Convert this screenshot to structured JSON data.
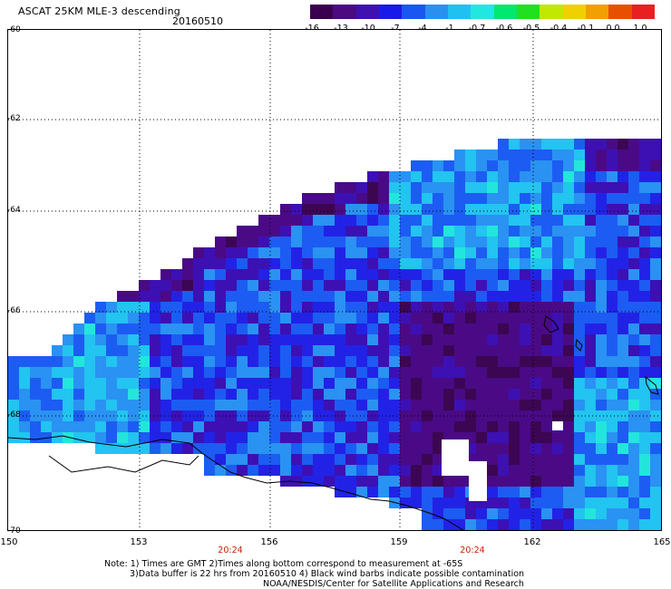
{
  "title": "ASCAT 25KM MLE-3 descending",
  "date": "20160510",
  "colorbar": {
    "colors": [
      "#3a0050",
      "#4a0a80",
      "#4010b0",
      "#1a1ae8",
      "#1a56f0",
      "#2a90f0",
      "#20c0f0",
      "#20e8e0",
      "#00e870",
      "#20e020",
      "#c0e800",
      "#f0d000",
      "#f0a000",
      "#e85000",
      "#e82020"
    ],
    "ticks": [
      "-16",
      "-13",
      "-10",
      "-7",
      "-4",
      "-1",
      "-0.7",
      "-0.6",
      "-0.5",
      "-0.4",
      "-0.1",
      "0.0",
      "1.0"
    ]
  },
  "lat_labels": [
    "-60",
    "-62",
    "-64",
    "-66",
    "-68",
    "-70"
  ],
  "lon_labels": [
    "150",
    "153",
    "156",
    "159",
    "162",
    "165"
  ],
  "time_labels": [
    "20:24",
    "20:24"
  ],
  "notes": {
    "line1": "Note: 1) Times are GMT 2)Times along bottom correspond to measurement at -65S",
    "line2": "3)Data buffer is 22 hrs from 20160510 4) Black wind barbs indicate possible contamination",
    "line3": "NOAA/NESDIS/Center for Satellite Applications and Research"
  }
}
